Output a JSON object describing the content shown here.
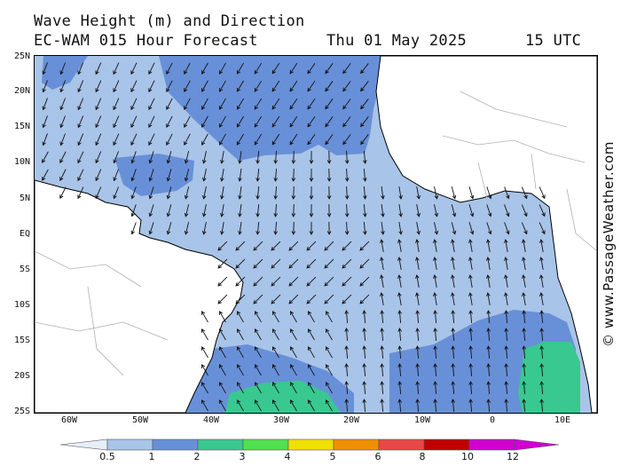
{
  "header": {
    "title": "Wave Height (m) and Direction",
    "model": "EC-WAM 015 Hour Forecast",
    "date": "Thu 01 May 2025",
    "time": "15 UTC"
  },
  "copyright": "© www.PassageWeather.com",
  "axes": {
    "lat_labels": [
      "25N",
      "20N",
      "15N",
      "10N",
      "5N",
      "EQ",
      "5S",
      "10S",
      "15S",
      "20S",
      "25S"
    ],
    "lon_labels": [
      "60W",
      "50W",
      "40W",
      "30W",
      "20W",
      "10W",
      "0",
      "10E"
    ]
  },
  "legend": {
    "unit": "m",
    "thresholds": [
      "0.5",
      "1",
      "2",
      "3",
      "4",
      "5",
      "6",
      "8",
      "10",
      "12"
    ],
    "colors": [
      "#e8eef8",
      "#a8c4e8",
      "#6890d8",
      "#38c890",
      "#50e050",
      "#f0e000",
      "#f09000",
      "#e84848",
      "#c00000",
      "#d000d0"
    ]
  },
  "colors": {
    "land": "#ffffff",
    "wave_1_2": "#a8c4e8",
    "wave_2_3": "#6890d8",
    "wave_3_4": "#38c890",
    "wave_0_5_1": "#e8eef8"
  }
}
